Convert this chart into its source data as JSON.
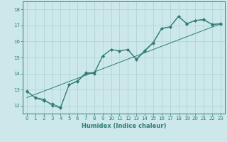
{
  "xlabel": "Humidex (Indice chaleur)",
  "ylabel": "",
  "bg_color": "#cce8ea",
  "grid_color": "#aad0d2",
  "line_color": "#2e7d72",
  "xlim": [
    -0.5,
    23.5
  ],
  "ylim": [
    11.5,
    18.5
  ],
  "xticks": [
    0,
    1,
    2,
    3,
    4,
    5,
    6,
    7,
    8,
    9,
    10,
    11,
    12,
    13,
    14,
    15,
    16,
    17,
    18,
    19,
    20,
    21,
    22,
    23
  ],
  "yticks": [
    12,
    13,
    14,
    15,
    16,
    17,
    18
  ],
  "line1_x": [
    0,
    1,
    2,
    3,
    4,
    5,
    6,
    7,
    8,
    9,
    10,
    11,
    12,
    13,
    14,
    15,
    16,
    17,
    18,
    19,
    20,
    21,
    22,
    23
  ],
  "line1_y": [
    12.9,
    12.5,
    12.4,
    12.0,
    11.85,
    13.3,
    13.5,
    14.0,
    14.0,
    15.1,
    15.5,
    15.4,
    15.5,
    14.85,
    15.4,
    15.9,
    16.8,
    16.9,
    17.55,
    17.1,
    17.3,
    17.35,
    17.05,
    17.1
  ],
  "line2_x": [
    0,
    1,
    2,
    3,
    4,
    5,
    6,
    7,
    8,
    9,
    10,
    11,
    12,
    13,
    14,
    15,
    16,
    17,
    18,
    19,
    20,
    21,
    22,
    23
  ],
  "line2_y": [
    12.88,
    12.48,
    12.3,
    12.1,
    11.9,
    13.3,
    13.55,
    14.05,
    14.05,
    15.1,
    15.5,
    15.42,
    15.5,
    14.9,
    15.45,
    15.95,
    16.82,
    16.92,
    17.58,
    17.12,
    17.32,
    17.38,
    17.07,
    17.12
  ],
  "line3_x": [
    0,
    23
  ],
  "line3_y": [
    12.5,
    17.1
  ],
  "marker_size": 2.0,
  "line_width": 0.7,
  "tick_fontsize": 5.0,
  "xlabel_fontsize": 6.0
}
